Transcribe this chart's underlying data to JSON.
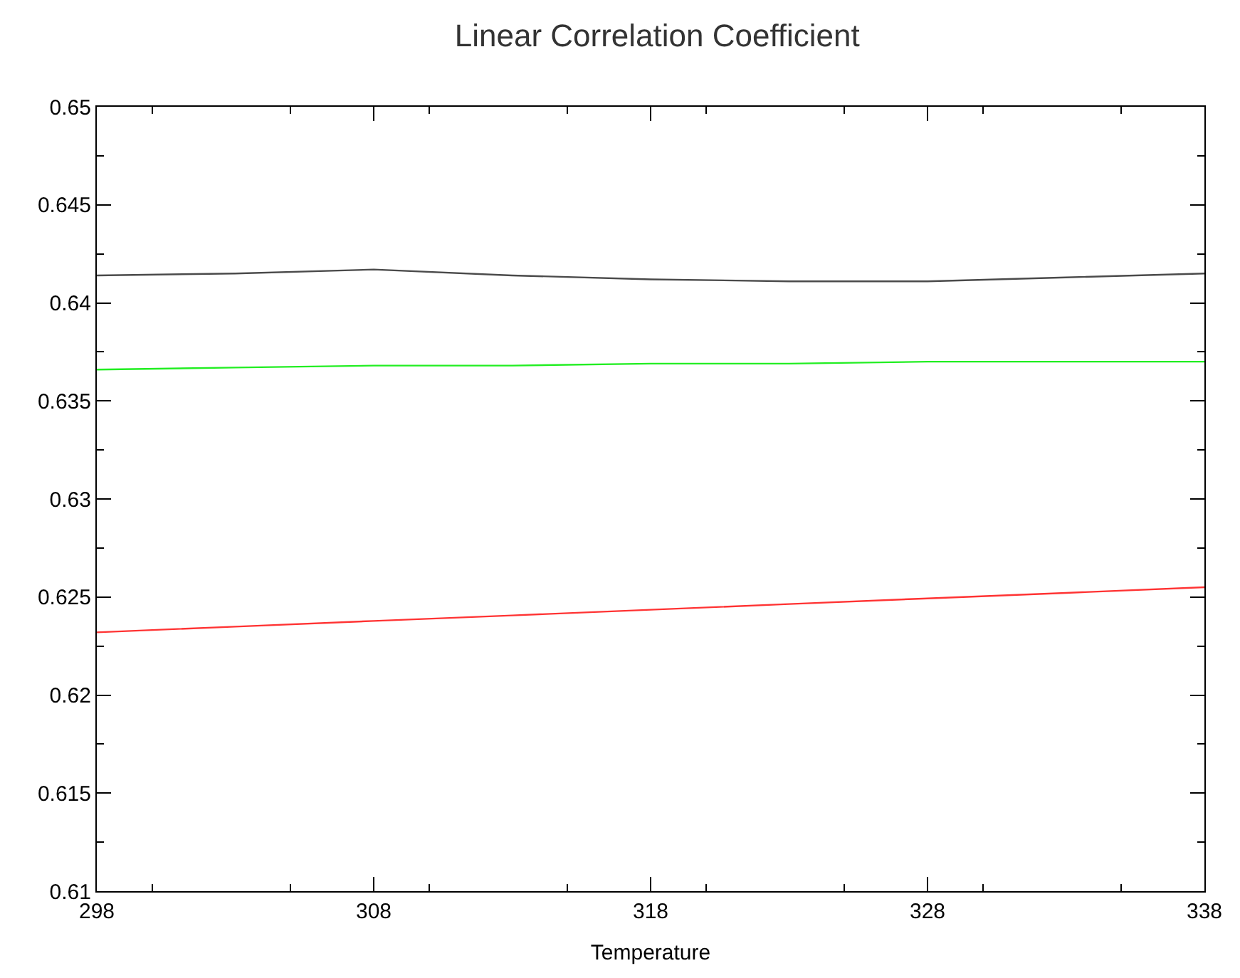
{
  "chart_data": {
    "type": "line",
    "title": "Linear Correlation Coefficient",
    "xlabel": "Temperature",
    "x": [
      298,
      303,
      308,
      313,
      318,
      323,
      328,
      333,
      338
    ],
    "series": [
      {
        "color": "#4a4a4a",
        "values": [
          0.6414,
          0.6415,
          0.6417,
          0.6414,
          0.6412,
          0.6411,
          0.6411,
          0.6413,
          0.6415
        ]
      },
      {
        "color": "#22ee22",
        "values": [
          0.6366,
          0.6367,
          0.6368,
          0.6368,
          0.6369,
          0.6369,
          0.637,
          0.637,
          0.637
        ]
      },
      {
        "color": "#ff3333",
        "values": [
          0.6232,
          0.62349,
          0.62378,
          0.62406,
          0.62435,
          0.62464,
          0.62493,
          0.62521,
          0.6255
        ]
      }
    ],
    "xlim": [
      298,
      338
    ],
    "xticks": [
      298,
      308,
      318,
      328,
      338
    ],
    "ylim": [
      0.61,
      0.65
    ],
    "yticks": [
      0.61,
      0.615,
      0.62,
      0.625,
      0.63,
      0.635,
      0.64,
      0.645,
      0.65
    ],
    "marker": "none",
    "line_style": "solid"
  }
}
